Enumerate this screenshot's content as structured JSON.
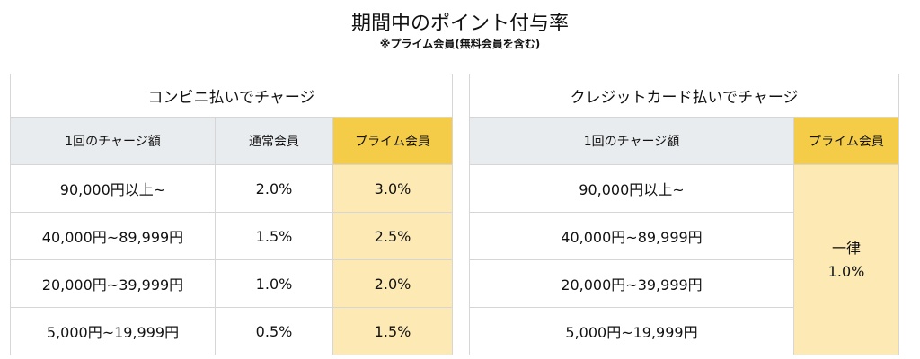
{
  "header": {
    "title": "期間中のポイント付与率",
    "subtitle": "※プライム会員(無料会員を含む)"
  },
  "convenience": {
    "caption": "コンビニ払いでチャージ",
    "headers": [
      "1回のチャージ額",
      "通常会員",
      "プライム会員"
    ],
    "rows": [
      {
        "amount": "90,000円以上~",
        "normal": "2.0%",
        "prime": "3.0%"
      },
      {
        "amount": "40,000円~89,999円",
        "normal": "1.5%",
        "prime": "2.5%"
      },
      {
        "amount": "20,000円~39,999円",
        "normal": "1.0%",
        "prime": "2.0%"
      },
      {
        "amount": "5,000円~19,999円",
        "normal": "0.5%",
        "prime": "1.5%"
      }
    ]
  },
  "credit": {
    "caption": "クレジットカード払いでチャージ",
    "headers": [
      "1回のチャージ額",
      "プライム会員"
    ],
    "rows": [
      {
        "amount": "90,000円以上~"
      },
      {
        "amount": "40,000円~89,999円"
      },
      {
        "amount": "20,000円~39,999円"
      },
      {
        "amount": "5,000円~19,999円"
      }
    ],
    "prime_flat_line1": "一律",
    "prime_flat_line2": "1.0%"
  },
  "colors": {
    "header_gray": "#e9ecee",
    "prime_header": "#f5cc47",
    "prime_cell": "#fce9b4",
    "border": "#d6d6d6"
  }
}
